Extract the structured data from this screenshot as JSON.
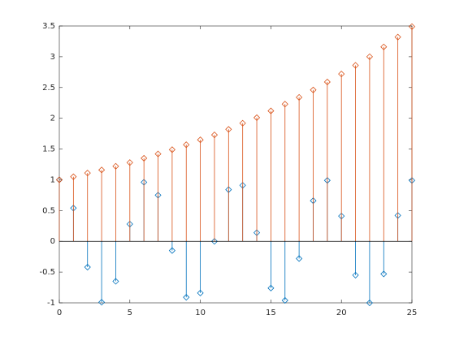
{
  "chart_data": {
    "type": "stem",
    "x": [
      0,
      1,
      2,
      3,
      4,
      5,
      6,
      7,
      8,
      9,
      10,
      11,
      12,
      13,
      14,
      15,
      16,
      17,
      18,
      19,
      20,
      21,
      22,
      23,
      24,
      25
    ],
    "series": [
      {
        "color": "#0072bd",
        "values": [
          1.0,
          0.54,
          -0.42,
          -0.99,
          -0.65,
          0.28,
          0.96,
          0.75,
          -0.15,
          -0.91,
          -0.84,
          0.0,
          0.84,
          0.91,
          0.14,
          -0.76,
          -0.96,
          -0.28,
          0.66,
          0.99,
          0.41,
          -0.55,
          -1.0,
          -0.53,
          0.42,
          0.99
        ]
      },
      {
        "color": "#d95319",
        "values": [
          1.0,
          1.05,
          1.11,
          1.16,
          1.22,
          1.28,
          1.35,
          1.42,
          1.49,
          1.57,
          1.65,
          1.73,
          1.82,
          1.92,
          2.01,
          2.12,
          2.23,
          2.34,
          2.46,
          2.59,
          2.72,
          2.86,
          3.0,
          3.16,
          3.32,
          3.49
        ]
      }
    ],
    "xlim": [
      0,
      25
    ],
    "xticks": [
      0,
      5,
      10,
      15,
      20,
      25
    ],
    "ylim": [
      -1,
      3.5
    ],
    "yticks": [
      -1,
      -0.5,
      0,
      0.5,
      1,
      1.5,
      2,
      2.5,
      3,
      3.5
    ],
    "baseline": 0
  }
}
